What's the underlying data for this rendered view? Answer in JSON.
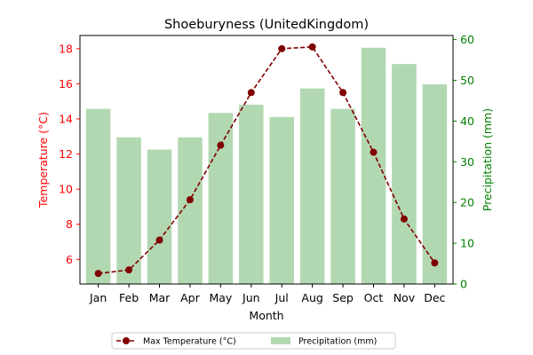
{
  "chart_data": {
    "type": "bar+line",
    "title": "Shoeburyness (UnitedKingdom)",
    "xlabel": "Month",
    "ylabel_left": "Temperature (°C)",
    "ylabel_right": "Precipitation (mm)",
    "categories": [
      "Jan",
      "Feb",
      "Mar",
      "Apr",
      "May",
      "Jun",
      "Jul",
      "Aug",
      "Sep",
      "Oct",
      "Nov",
      "Dec"
    ],
    "series": [
      {
        "name": "Max Temperature (°C)",
        "type": "line",
        "axis": "left",
        "values": [
          5.2,
          5.4,
          7.1,
          9.4,
          12.5,
          15.5,
          18.0,
          18.1,
          15.5,
          12.1,
          8.3,
          5.8
        ]
      },
      {
        "name": "Precipitation (mm)",
        "type": "bar",
        "axis": "right",
        "values": [
          43,
          36,
          33,
          36,
          42,
          44,
          41,
          48,
          43,
          58,
          54,
          49
        ]
      }
    ],
    "ylim_left": [
      4.6,
      18.75
    ],
    "ylim_right": [
      0,
      61
    ],
    "yticks_left": [
      6,
      8,
      10,
      12,
      14,
      16,
      18
    ],
    "yticks_right": [
      0,
      10,
      20,
      30,
      40,
      50,
      60
    ],
    "legend_position": "bottom-center",
    "grid": false,
    "colors": {
      "temperature_line": "#800000",
      "temperature_axis": "#ff0000",
      "precipitation_bar": "#b2d8b2",
      "precipitation_axis": "#008000"
    }
  }
}
